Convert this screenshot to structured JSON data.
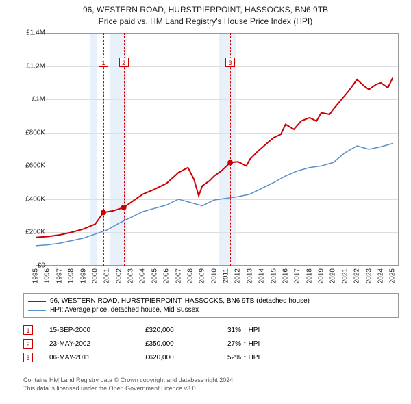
{
  "title_line1": "96, WESTERN ROAD, HURSTPIERPOINT, HASSOCKS, BN6 9TB",
  "title_line2": "Price paid vs. HM Land Registry's House Price Index (HPI)",
  "chart": {
    "type": "line",
    "x_start_year": 1995,
    "x_end_year": 2025.5,
    "ylim": [
      0,
      1400000
    ],
    "ytick_step": 200000,
    "ytick_labels": [
      "£0",
      "£200K",
      "£400K",
      "£600K",
      "£800K",
      "£1M",
      "£1.2M",
      "£1.4M"
    ],
    "xtick_years": [
      1995,
      1996,
      1997,
      1998,
      1999,
      2000,
      2001,
      2002,
      2003,
      2004,
      2005,
      2006,
      2007,
      2008,
      2009,
      2010,
      2011,
      2012,
      2013,
      2014,
      2015,
      2016,
      2017,
      2018,
      2019,
      2020,
      2021,
      2022,
      2023,
      2024,
      2025
    ],
    "grid_color": "#dddddd",
    "border_color": "#999999",
    "background_color": "#ffffff",
    "band_color": "#d5e5f5",
    "bands": [
      {
        "start": 1999.6,
        "end": 2000.2
      },
      {
        "start": 2001.3,
        "end": 2002.7
      },
      {
        "start": 2010.4,
        "end": 2011.8
      }
    ],
    "marker_line_color": "#cc0000",
    "markers": [
      {
        "n": "1",
        "year": 2000.7
      },
      {
        "n": "2",
        "year": 2002.4
      },
      {
        "n": "3",
        "year": 2011.35
      }
    ],
    "series": [
      {
        "name": "property",
        "color": "#cc0000",
        "width": 2,
        "points": [
          [
            1995,
            170000
          ],
          [
            1996,
            175000
          ],
          [
            1997,
            185000
          ],
          [
            1998,
            200000
          ],
          [
            1999,
            220000
          ],
          [
            2000,
            250000
          ],
          [
            2000.7,
            320000
          ],
          [
            2001.5,
            330000
          ],
          [
            2002.4,
            350000
          ],
          [
            2003,
            380000
          ],
          [
            2004,
            430000
          ],
          [
            2005,
            460000
          ],
          [
            2006,
            495000
          ],
          [
            2007,
            560000
          ],
          [
            2007.8,
            590000
          ],
          [
            2008.3,
            520000
          ],
          [
            2008.7,
            420000
          ],
          [
            2009,
            480000
          ],
          [
            2009.6,
            510000
          ],
          [
            2010,
            540000
          ],
          [
            2010.6,
            570000
          ],
          [
            2011.35,
            620000
          ],
          [
            2012,
            625000
          ],
          [
            2012.7,
            600000
          ],
          [
            2013,
            640000
          ],
          [
            2013.7,
            690000
          ],
          [
            2014.5,
            740000
          ],
          [
            2015,
            770000
          ],
          [
            2015.6,
            790000
          ],
          [
            2016,
            850000
          ],
          [
            2016.7,
            820000
          ],
          [
            2017.3,
            870000
          ],
          [
            2018,
            890000
          ],
          [
            2018.6,
            870000
          ],
          [
            2019,
            920000
          ],
          [
            2019.7,
            910000
          ],
          [
            2020,
            940000
          ],
          [
            2020.7,
            1000000
          ],
          [
            2021.3,
            1050000
          ],
          [
            2022,
            1120000
          ],
          [
            2022.6,
            1080000
          ],
          [
            2023,
            1060000
          ],
          [
            2023.6,
            1090000
          ],
          [
            2024,
            1100000
          ],
          [
            2024.6,
            1070000
          ],
          [
            2025,
            1130000
          ]
        ]
      },
      {
        "name": "hpi",
        "color": "#5b8fc7",
        "width": 1.5,
        "points": [
          [
            1995,
            120000
          ],
          [
            1996,
            125000
          ],
          [
            1997,
            135000
          ],
          [
            1998,
            150000
          ],
          [
            1999,
            165000
          ],
          [
            2000,
            190000
          ],
          [
            2001,
            215000
          ],
          [
            2002,
            255000
          ],
          [
            2003,
            290000
          ],
          [
            2004,
            325000
          ],
          [
            2005,
            345000
          ],
          [
            2006,
            365000
          ],
          [
            2007,
            400000
          ],
          [
            2008,
            380000
          ],
          [
            2009,
            360000
          ],
          [
            2010,
            395000
          ],
          [
            2011,
            405000
          ],
          [
            2012,
            415000
          ],
          [
            2013,
            430000
          ],
          [
            2014,
            465000
          ],
          [
            2015,
            500000
          ],
          [
            2016,
            540000
          ],
          [
            2017,
            570000
          ],
          [
            2018,
            590000
          ],
          [
            2019,
            600000
          ],
          [
            2020,
            620000
          ],
          [
            2021,
            680000
          ],
          [
            2022,
            720000
          ],
          [
            2023,
            700000
          ],
          [
            2024,
            715000
          ],
          [
            2025,
            735000
          ]
        ]
      }
    ],
    "sale_points": [
      {
        "year": 2000.7,
        "price": 320000
      },
      {
        "year": 2002.4,
        "price": 350000
      },
      {
        "year": 2011.35,
        "price": 620000
      }
    ]
  },
  "legend": {
    "items": [
      {
        "color": "#cc0000",
        "label": "96, WESTERN ROAD, HURSTPIERPOINT, HASSOCKS, BN6 9TB (detached house)"
      },
      {
        "color": "#5b8fc7",
        "label": "HPI: Average price, detached house, Mid Sussex"
      }
    ]
  },
  "sales": [
    {
      "n": "1",
      "date": "15-SEP-2000",
      "price": "£320,000",
      "diff": "31% ↑ HPI"
    },
    {
      "n": "2",
      "date": "23-MAY-2002",
      "price": "£350,000",
      "diff": "27% ↑ HPI"
    },
    {
      "n": "3",
      "date": "06-MAY-2011",
      "price": "£620,000",
      "diff": "52% ↑ HPI"
    }
  ],
  "footer_line1": "Contains HM Land Registry data © Crown copyright and database right 2024.",
  "footer_line2": "This data is licensed under the Open Government Licence v3.0."
}
